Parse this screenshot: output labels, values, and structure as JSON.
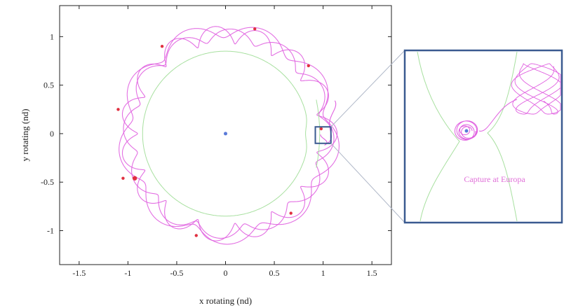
{
  "chart_data": [
    {
      "type": "line",
      "xlabel": "x rotating (nd)",
      "ylabel": "y rotating (nd)",
      "xlim": [
        -1.7,
        1.7
      ],
      "ylim": [
        -1.35,
        1.32
      ],
      "xticks": [
        -1.5,
        -1,
        -0.5,
        0,
        0.5,
        1,
        1.5
      ],
      "yticks": [
        -1,
        -0.5,
        0,
        0.5,
        1
      ],
      "xtick_labels": [
        "-1.5",
        "-1",
        "-0.5",
        "0",
        "0.5",
        "1",
        "1.5"
      ],
      "ytick_labels": [
        "-1",
        "-0.5",
        "0",
        "0.5",
        "1"
      ],
      "grid": false,
      "primary": {
        "x": 0,
        "y": 0
      },
      "secondary": {
        "x": 1,
        "y": 0
      },
      "zoom_box": {
        "x": [
          0.92,
          1.08
        ],
        "y": [
          -0.1,
          0.07
        ]
      },
      "series": [
        {
          "kind": "trajectory",
          "color": "#e060e0",
          "description_visible": false,
          "params": [
            {
              "r_min": 0.93,
              "r_max": 1.11,
              "lobes": 15
            },
            {
              "r_min": 0.95,
              "r_max": 1.08,
              "lobes": 12
            },
            {
              "r_min": 0.99,
              "r_max": 1.14,
              "lobes": 9
            }
          ]
        },
        {
          "kind": "zero-velocity-curve",
          "color": "#a8e0a0",
          "radius": 0.85
        }
      ]
    },
    {
      "type": "line",
      "annotations": [
        "Capture at Europa"
      ]
    }
  ],
  "colors": {
    "trajectory": "#e060e0",
    "zvc": "#a8e0a0",
    "box": "#3a5a90",
    "marker": "#e03040",
    "primary": "#5a7ad8",
    "annotation": "#e070d8"
  }
}
